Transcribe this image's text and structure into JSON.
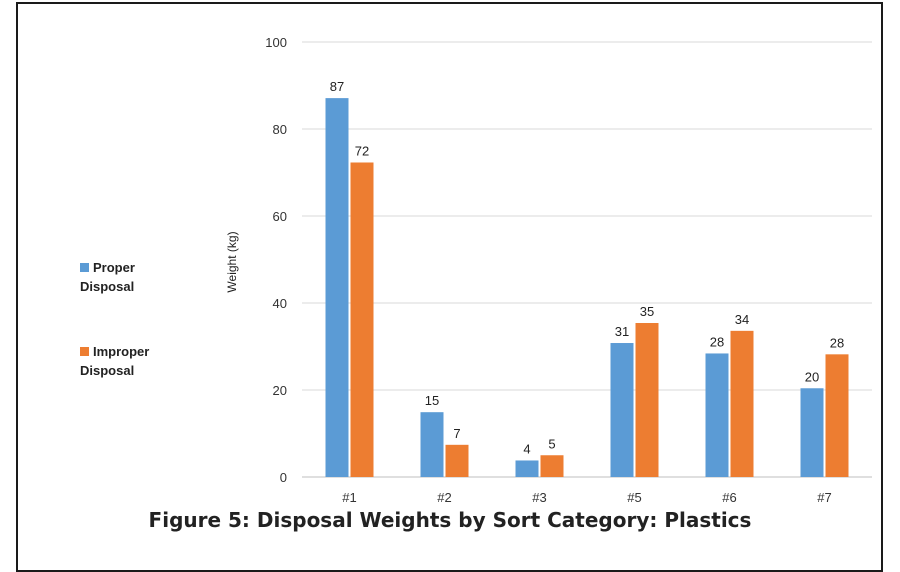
{
  "chart_data": {
    "type": "bar",
    "title": "Figure 5: Disposal Weights by Sort Category: Plastics",
    "xlabel": "",
    "ylabel": "Weight (kg)",
    "ylim": [
      0,
      100
    ],
    "yticks": [
      0,
      20,
      40,
      60,
      80,
      100
    ],
    "grid": true,
    "legend_placement": "left",
    "categories": [
      "#1",
      "#2",
      "#3",
      "#5",
      "#6",
      "#7"
    ],
    "series": [
      {
        "name_line1": "Proper",
        "name_line2": "Disposal",
        "color": "#5b9bd5",
        "values": [
          87,
          15,
          4,
          31,
          28,
          20
        ],
        "display_values": [
          87.1,
          14.9,
          3.8,
          30.8,
          28.4,
          20.4
        ]
      },
      {
        "name_line1": "Improper",
        "name_line2": "Disposal",
        "color": "#ed7d31",
        "values": [
          72,
          7,
          5,
          35,
          34,
          28
        ],
        "display_values": [
          72.3,
          7.4,
          5.0,
          35.4,
          33.6,
          28.2
        ]
      }
    ]
  }
}
